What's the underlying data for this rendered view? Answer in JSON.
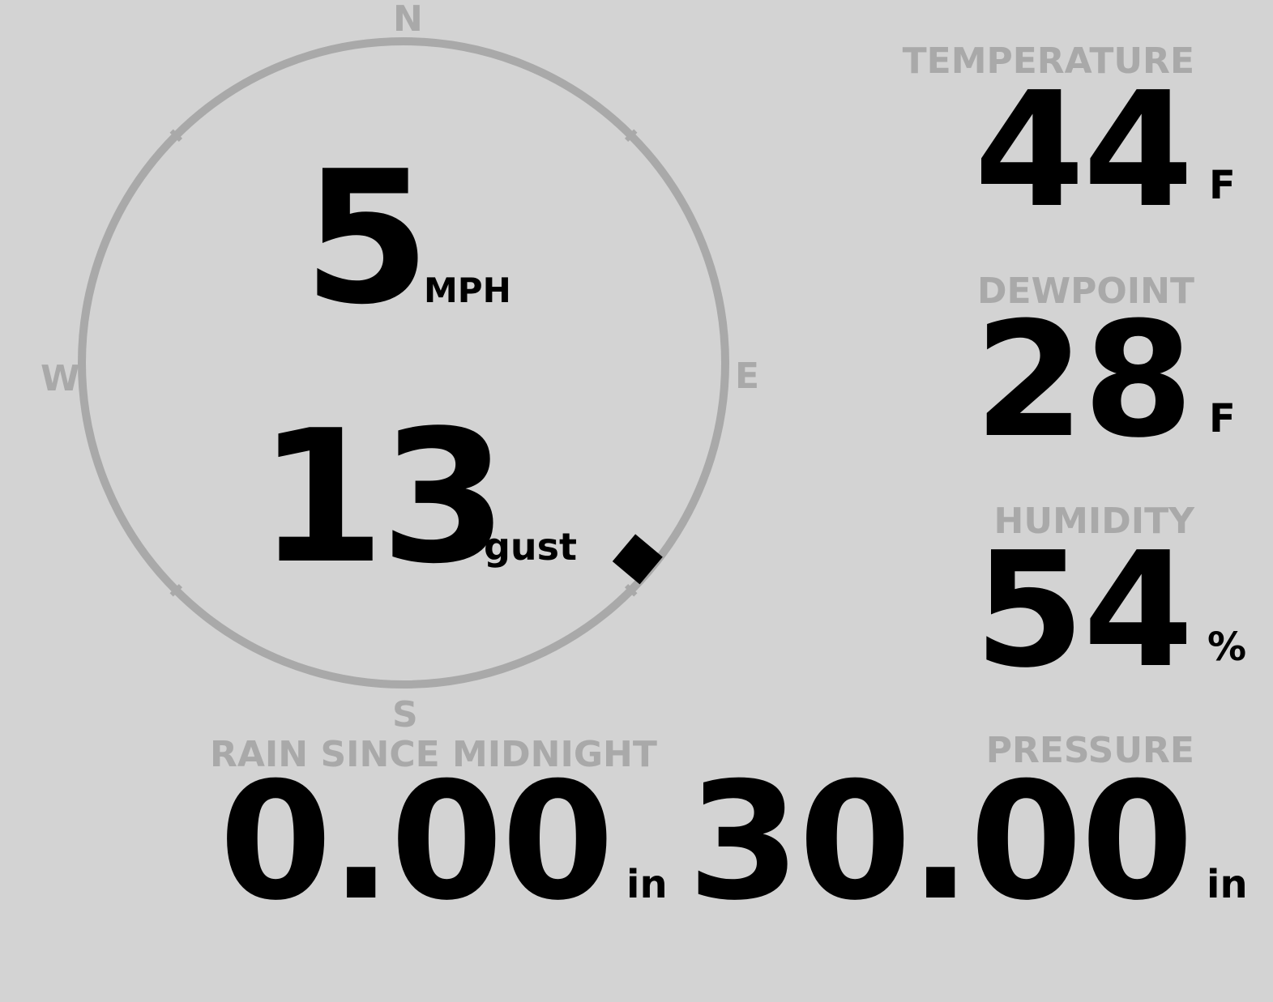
{
  "wind": {
    "speed": "5",
    "speed_unit": "MPH",
    "gust": "13",
    "gust_label": "gust",
    "direction_deg": 130,
    "compass": {
      "n": "N",
      "e": "E",
      "s": "S",
      "w": "W"
    }
  },
  "temperature": {
    "label": "TEMPERATURE",
    "value": "44",
    "unit": "F"
  },
  "dewpoint": {
    "label": "DEWPOINT",
    "value": "28",
    "unit": "F"
  },
  "humidity": {
    "label": "HUMIDITY",
    "value": "54",
    "unit": "%"
  },
  "rain": {
    "label": "RAIN SINCE MIDNIGHT",
    "value": "0.00",
    "unit": "in"
  },
  "pressure": {
    "label": "PRESSURE",
    "value": "30.00",
    "unit": "in"
  },
  "colors": {
    "background": "#d3d3d3",
    "label": "#a9a9a9",
    "value": "#000000"
  }
}
